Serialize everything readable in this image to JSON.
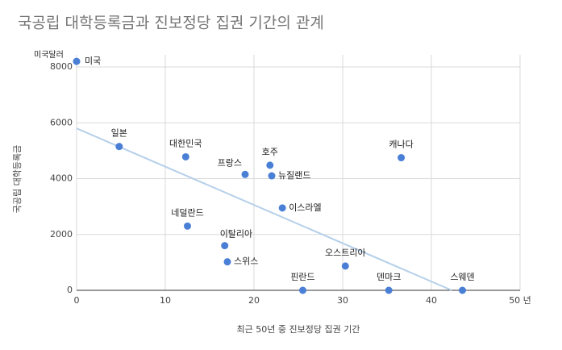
{
  "chart_data": {
    "type": "scatter",
    "title": "국공립 대학등록금과 진보정당 집권 기간의 관계",
    "x_label": "최근 50년 중 진보정당 집권 기간",
    "y_label": "국공립 대학등록금",
    "y_unit": "미국달러",
    "labels": [
      "미국",
      "일본",
      "대한민국",
      "프랑스",
      "호주",
      "뉴질랜드",
      "캐나다",
      "이스라엘",
      "네덜란드",
      "이탈리아",
      "스위스",
      "오스트리아",
      "핀란드",
      "덴마크",
      "스웨덴"
    ],
    "x": [
      0,
      4.8,
      12.3,
      19,
      21.8,
      22,
      36.6,
      23.2,
      12.5,
      16.7,
      17,
      30.3,
      25.5,
      35.2,
      43.5
    ],
    "y": [
      8200,
      5150,
      4780,
      4150,
      4480,
      4100,
      4750,
      2950,
      2300,
      1600,
      1020,
      870,
      0,
      0,
      0
    ],
    "color": "#4a7fd6",
    "trendline": {
      "x": [
        0,
        42.3
      ],
      "y": [
        5800,
        0
      ],
      "color": "#b6d0ea"
    },
    "xlim": [
      0,
      50
    ],
    "ylim": [
      0,
      8000
    ],
    "xticks": [
      0,
      10,
      20,
      30,
      40,
      {
        "value": 50,
        "label": "50 년"
      }
    ],
    "yticks": [
      0,
      2000,
      4000,
      6000,
      8000
    ],
    "grid": true
  }
}
